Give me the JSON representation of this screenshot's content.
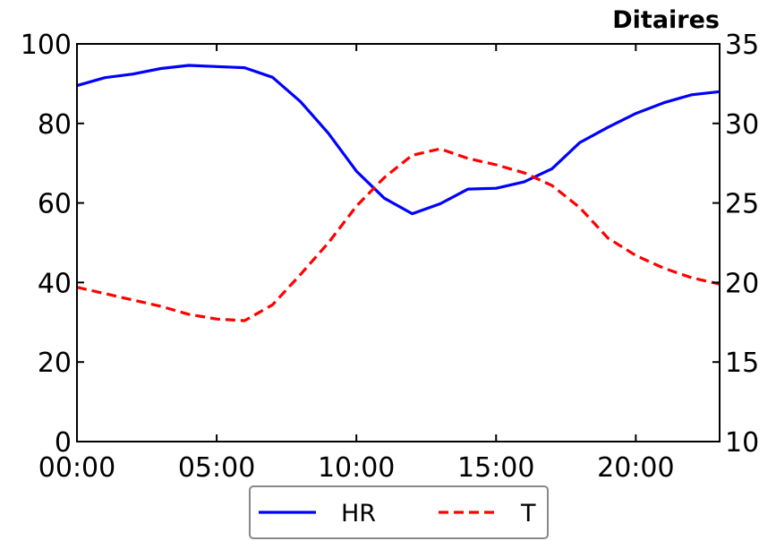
{
  "chart_data": {
    "type": "line",
    "title": "Ditaires",
    "x": [
      "00:00",
      "01:00",
      "02:00",
      "03:00",
      "04:00",
      "05:00",
      "06:00",
      "07:00",
      "08:00",
      "09:00",
      "10:00",
      "11:00",
      "12:00",
      "13:00",
      "14:00",
      "15:00",
      "16:00",
      "17:00",
      "18:00",
      "19:00",
      "20:00",
      "21:00",
      "22:00",
      "23:00"
    ],
    "x_ticks": [
      "00:00",
      "05:00",
      "10:00",
      "15:00",
      "20:00"
    ],
    "xlim": [
      "00:00",
      "23:00"
    ],
    "y_left": {
      "lim": [
        0,
        100
      ],
      "ticks": [
        0,
        20,
        40,
        60,
        80,
        100
      ]
    },
    "y_right": {
      "lim": [
        10,
        35
      ],
      "ticks": [
        10,
        15,
        20,
        25,
        30,
        35
      ]
    },
    "series": [
      {
        "name": "HR",
        "axis": "left",
        "color": "#0000ff",
        "style": "solid",
        "values": [
          89.5,
          91.5,
          92.4,
          93.8,
          94.6,
          94.3,
          94.0,
          91.6,
          85.5,
          77.5,
          68.0,
          61.2,
          57.3,
          59.8,
          63.5,
          63.7,
          65.3,
          68.6,
          75.2,
          79.0,
          82.5,
          85.2,
          87.2,
          88.0
        ]
      },
      {
        "name": "T",
        "axis": "right",
        "color": "#ff0000",
        "style": "dashed",
        "values": [
          19.7,
          19.3,
          18.9,
          18.5,
          18.0,
          17.7,
          17.6,
          18.6,
          20.5,
          22.5,
          24.8,
          26.6,
          28.0,
          28.4,
          27.8,
          27.4,
          26.9,
          26.1,
          24.7,
          22.8,
          21.7,
          20.9,
          20.3,
          19.9
        ]
      }
    ],
    "legend_placement": "bottom-center",
    "grid": false
  }
}
